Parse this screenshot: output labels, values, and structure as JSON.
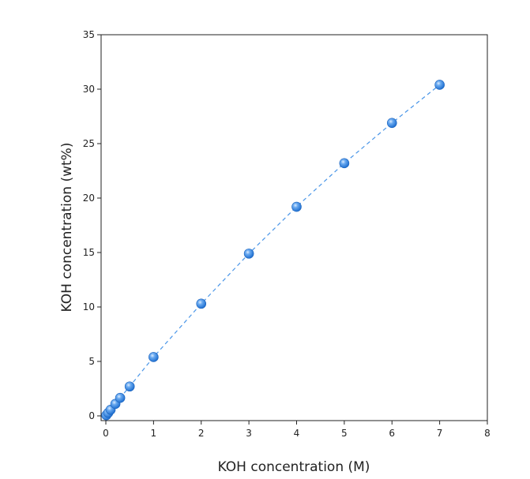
{
  "chart_data": {
    "type": "scatter",
    "title": "",
    "xlabel": "KOH concentration (M)",
    "ylabel": "KOH concentration (wt%)",
    "xlim": [
      0,
      8
    ],
    "ylim": [
      0,
      35
    ],
    "xticks": [
      0,
      1,
      2,
      3,
      4,
      5,
      6,
      7,
      8
    ],
    "yticks": [
      0,
      5,
      10,
      15,
      20,
      25,
      30,
      35
    ],
    "grid": false,
    "legend": "none",
    "series": [
      {
        "x": [
          0.01,
          0.05,
          0.1,
          0.2,
          0.3,
          0.5,
          1,
          2,
          3,
          4,
          5,
          6,
          7
        ],
        "y": [
          0.06,
          0.28,
          0.56,
          1.1,
          1.65,
          2.7,
          5.4,
          10.3,
          14.9,
          19.2,
          23.2,
          26.9,
          30.4
        ],
        "marker_color": "#3d8ee6",
        "line_style": "dashed",
        "line_color": "#4a96e8"
      }
    ]
  }
}
